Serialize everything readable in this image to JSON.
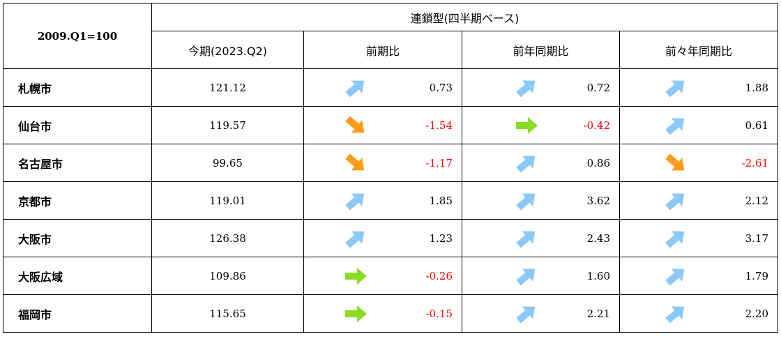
{
  "table": {
    "corner_label": "2009.Q1=100",
    "group_header": "連鎖型(四半期ベース)",
    "columns": {
      "current": "今期(2023.Q2)",
      "qoq": "前期比",
      "yoy": "前年同期比",
      "yoy2": "前々年同期比"
    },
    "rows": [
      {
        "city": "札幌市",
        "current": "121.12",
        "qoq": {
          "value": "0.73",
          "trend": "up"
        },
        "yoy": {
          "value": "0.72",
          "trend": "up"
        },
        "yoy2": {
          "value": "1.88",
          "trend": "up"
        }
      },
      {
        "city": "仙台市",
        "current": "119.57",
        "qoq": {
          "value": "-1.54",
          "trend": "down"
        },
        "yoy": {
          "value": "-0.42",
          "trend": "flat"
        },
        "yoy2": {
          "value": "0.61",
          "trend": "up"
        }
      },
      {
        "city": "名古屋市",
        "current": "99.65",
        "qoq": {
          "value": "-1.17",
          "trend": "down"
        },
        "yoy": {
          "value": "0.86",
          "trend": "up"
        },
        "yoy2": {
          "value": "-2.61",
          "trend": "down"
        }
      },
      {
        "city": "京都市",
        "current": "119.01",
        "qoq": {
          "value": "1.85",
          "trend": "up"
        },
        "yoy": {
          "value": "3.62",
          "trend": "up"
        },
        "yoy2": {
          "value": "2.12",
          "trend": "up"
        }
      },
      {
        "city": "大阪市",
        "current": "126.38",
        "qoq": {
          "value": "1.23",
          "trend": "up"
        },
        "yoy": {
          "value": "2.43",
          "trend": "up"
        },
        "yoy2": {
          "value": "3.17",
          "trend": "up"
        }
      },
      {
        "city": "大阪広域",
        "current": "109.86",
        "qoq": {
          "value": "-0.26",
          "trend": "flat"
        },
        "yoy": {
          "value": "1.60",
          "trend": "up"
        },
        "yoy2": {
          "value": "1.79",
          "trend": "up"
        }
      },
      {
        "city": "福岡市",
        "current": "115.65",
        "qoq": {
          "value": "-0.15",
          "trend": "flat"
        },
        "yoy": {
          "value": "2.21",
          "trend": "up"
        },
        "yoy2": {
          "value": "2.20",
          "trend": "up"
        }
      }
    ]
  },
  "colors": {
    "up_arrow": "#8cc8f8",
    "down_arrow": "#ff9a1a",
    "flat_arrow": "#88dd22",
    "negative_text": "#ff0000"
  }
}
